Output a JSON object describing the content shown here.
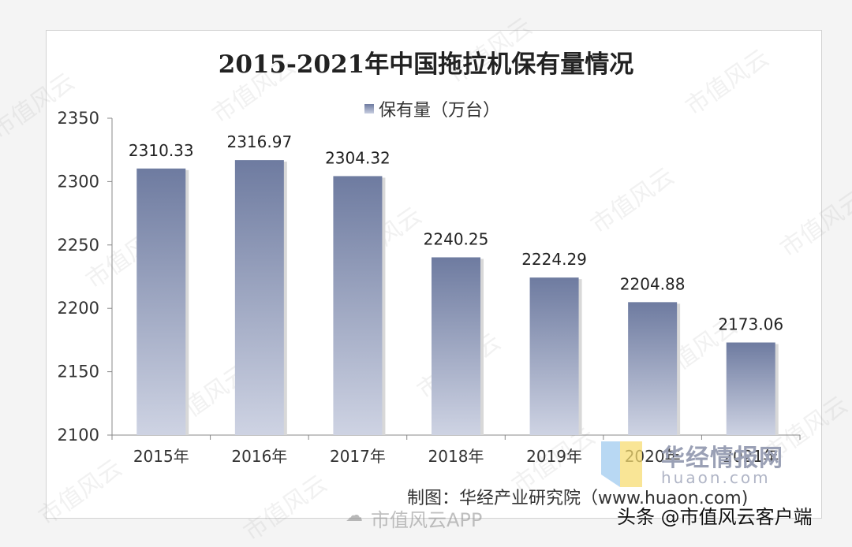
{
  "chart_data": {
    "type": "bar",
    "title": "2015-2021年中国拖拉机保有量情况",
    "series": [
      {
        "name": "保有量（万台）",
        "values": [
          2310.33,
          2316.97,
          2304.32,
          2240.25,
          2224.29,
          2204.88,
          2173.06
        ]
      }
    ],
    "categories": [
      "2015年",
      "2016年",
      "2017年",
      "2018年",
      "2019年",
      "2020年",
      "2021年"
    ],
    "value_labels": [
      "2310.33",
      "2316.97",
      "2304.32",
      "2240.25",
      "2224.29",
      "2204.88",
      "2173.06"
    ],
    "ylim": [
      2100,
      2350
    ],
    "yticks": [
      2100,
      2150,
      2200,
      2250,
      2300,
      2350
    ],
    "grid": false,
    "legend": "top-center",
    "bar_color_top": "#6e7ba0",
    "bar_color_bottom": "#ced3e3"
  },
  "footer": {
    "credit": "制图：华经产业研究院（www.huaon.com)",
    "brand_name": "华经情报网",
    "brand_url": "huaon.com",
    "app_label": "市值风云APP",
    "source_tag": "头条 @市值风云客户端"
  },
  "watermark": {
    "text": "市值风云"
  }
}
